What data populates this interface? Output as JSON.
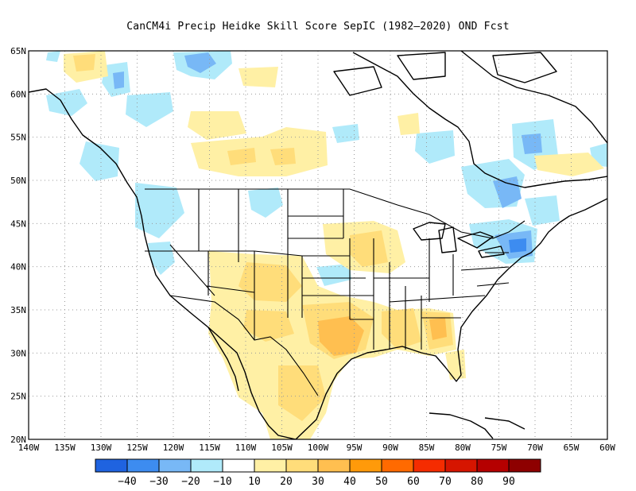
{
  "title": "CanCM4i Precip Heidke Skill Score SepIC (1982–2020) OND Fcst",
  "map": {
    "lon_range": [
      -140,
      -60
    ],
    "lat_range": [
      20,
      65
    ],
    "lon_ticks": [
      "140W",
      "135W",
      "130W",
      "125W",
      "120W",
      "115W",
      "110W",
      "105W",
      "100W",
      "95W",
      "90W",
      "85W",
      "80W",
      "75W",
      "70W",
      "65W",
      "60W"
    ],
    "lat_ticks": [
      "20N",
      "25N",
      "30N",
      "35N",
      "40N",
      "45N",
      "50N",
      "55N",
      "60N",
      "65N"
    ],
    "gridlines": "dotted"
  },
  "colorbar": {
    "labels": [
      "−40",
      "−30",
      "−20",
      "−10",
      "10",
      "20",
      "30",
      "40",
      "50",
      "60",
      "70",
      "80",
      "90"
    ],
    "colors": [
      "#1f63e0",
      "#3d8cf0",
      "#78b8f6",
      "#b0eafa",
      "#ffffff",
      "#fff0a5",
      "#ffdd7a",
      "#ffbf50",
      "#ff9a0a",
      "#ff6a00",
      "#f52c00",
      "#d61500",
      "#b50000",
      "#8e0000"
    ]
  }
}
